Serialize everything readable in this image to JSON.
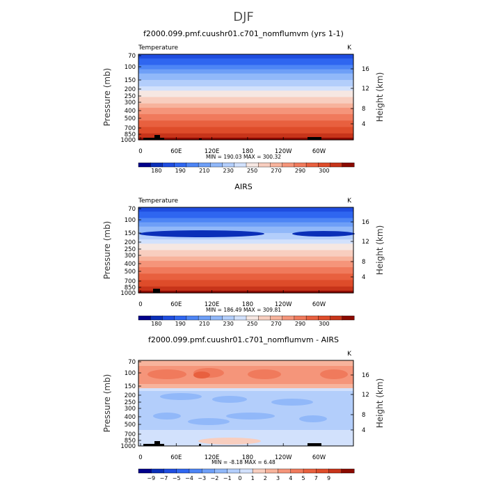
{
  "page_title": "DJF",
  "colors": {
    "temperature_scale": [
      "#00008b",
      "#0a2fb8",
      "#1f4de0",
      "#2f66f0",
      "#4d85f5",
      "#6e9ff7",
      "#91b8f9",
      "#b3cefb",
      "#d2e1fc",
      "#f6e7e2",
      "#f8cebf",
      "#f7b39c",
      "#f5957a",
      "#f07a5c",
      "#e8603f",
      "#de4c2a",
      "#c7341a",
      "#8b0a00"
    ],
    "difference_scale": [
      "#00008b",
      "#0a2fb8",
      "#1f4de0",
      "#2f66f0",
      "#4d85f5",
      "#6e9ff7",
      "#91b8f9",
      "#b3cefb",
      "#d2e1fc",
      "#f8cebf",
      "#f7b39c",
      "#f5957a",
      "#f07a5c",
      "#e8603f",
      "#de4c2a",
      "#c7341a",
      "#8b0a00"
    ],
    "topography": "#000000"
  },
  "chart_data": [
    {
      "type": "heatmap",
      "title": "f2000.099.pmf.cuushr01.c701_nomflumvm (yrs 1-1)",
      "left_label": "Temperature",
      "right_label": "K",
      "xlabel": "",
      "ylabel": "Pressure (mb)",
      "y2label": "Height (km)",
      "x_ticks": [
        "0",
        "60E",
        "120E",
        "180",
        "120W",
        "60W"
      ],
      "y_ticks": [
        "70",
        "100",
        "150",
        "200",
        "250",
        "300",
        "400",
        "500",
        "700",
        "850",
        "1000"
      ],
      "y2_ticks": [
        "16",
        "12",
        "8",
        "4"
      ],
      "stats": "MIN =  190.03   MAX =  300.32",
      "min": 190.03,
      "max": 300.32,
      "colorbar_labels": [
        "180",
        "190",
        "210",
        "230",
        "250",
        "270",
        "290",
        "300"
      ]
    },
    {
      "type": "heatmap",
      "title": "AIRS",
      "left_label": "Temperature",
      "right_label": "K",
      "xlabel": "",
      "ylabel": "Pressure (mb)",
      "y2label": "Height (km)",
      "x_ticks": [
        "0",
        "60E",
        "120E",
        "180",
        "120W",
        "60W"
      ],
      "y_ticks": [
        "70",
        "100",
        "150",
        "200",
        "250",
        "300",
        "400",
        "500",
        "700",
        "850",
        "1000"
      ],
      "y2_ticks": [
        "16",
        "12",
        "8",
        "4"
      ],
      "stats": "MIN =  186.49   MAX =  309.81",
      "min": 186.49,
      "max": 309.81,
      "colorbar_labels": [
        "180",
        "190",
        "210",
        "230",
        "250",
        "270",
        "290",
        "300"
      ]
    },
    {
      "type": "heatmap",
      "title": "f2000.099.pmf.cuushr01.c701_nomflumvm - AIRS",
      "left_label": "",
      "right_label": "K",
      "xlabel": "",
      "ylabel": "Pressure (mb)",
      "y2label": "Height (km)",
      "x_ticks": [
        "0",
        "60E",
        "120E",
        "180",
        "120W",
        "60W"
      ],
      "y_ticks": [
        "70",
        "100",
        "150",
        "200",
        "250",
        "300",
        "400",
        "500",
        "700",
        "850",
        "1000"
      ],
      "y2_ticks": [
        "16",
        "12",
        "8",
        "4"
      ],
      "stats": "MIN =   -8.18   MAX =    6.48",
      "min": -8.18,
      "max": 6.48,
      "colorbar_labels": [
        "−9",
        "−7",
        "−5",
        "−4",
        "−3",
        "−2",
        "−1",
        "0",
        "1",
        "2",
        "3",
        "4",
        "5",
        "7",
        "9"
      ]
    }
  ]
}
